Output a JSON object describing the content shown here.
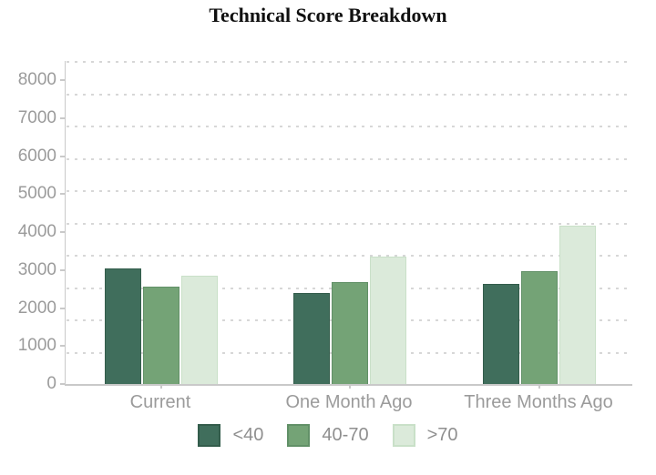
{
  "title": "Technical Score Breakdown",
  "chart_data": {
    "type": "bar",
    "title": "Technical Score Breakdown",
    "categories": [
      "Current",
      "One Month Ago",
      "Three Months Ago"
    ],
    "series": [
      {
        "name": "<40",
        "color": "#406e5c",
        "border_color": "#335c4b",
        "values": [
          3050,
          2400,
          2640
        ]
      },
      {
        "name": "40-70",
        "color": "#74a376",
        "border_color": "#619067",
        "values": [
          2560,
          2680,
          2970
        ]
      },
      {
        "name": ">70",
        "color": "#dbeada",
        "border_color": "#c9e0c8",
        "values": [
          2850,
          3350,
          4170
        ]
      }
    ],
    "xlabel": "",
    "ylabel": "",
    "ylim": [
      0,
      8000
    ],
    "ytick_interval": 1000,
    "ytick_labels": [
      "0",
      "1000",
      "2000",
      "3000",
      "4000",
      "5000",
      "6000",
      "7000",
      "8000"
    ],
    "grid": "horizontal-dashed",
    "legend_position": "bottom",
    "axis_label_color": "#9b9b9b",
    "axis_line_color": "#c9c9c9"
  }
}
